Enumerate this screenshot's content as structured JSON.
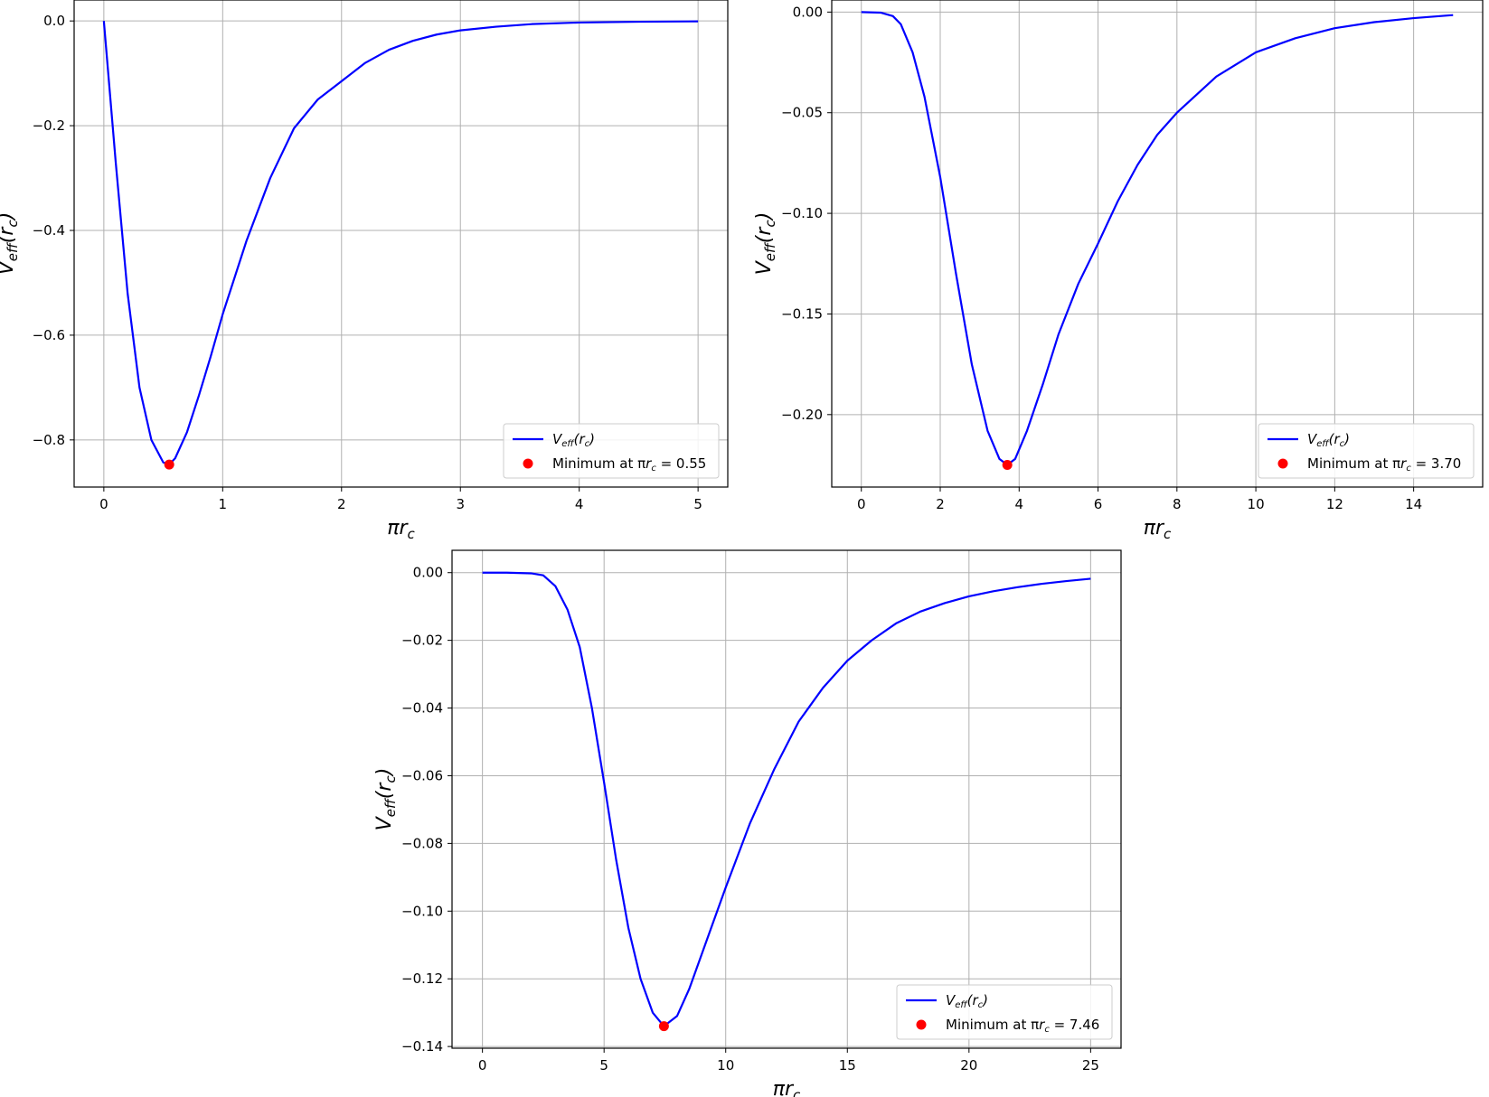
{
  "chart_data": [
    {
      "type": "line",
      "xlim": [
        -0.25,
        5.25
      ],
      "ylim": [
        -0.89,
        0.04
      ],
      "xticks": [
        0,
        1,
        2,
        3,
        4,
        5
      ],
      "xtick_labels": [
        "0",
        "1",
        "2",
        "3",
        "4",
        "5"
      ],
      "yticks": [
        0.0,
        -0.2,
        -0.4,
        -0.6,
        -0.8
      ],
      "ytick_labels": [
        "0.0",
        "−0.2",
        "−0.4",
        "−0.6",
        "−0.8"
      ],
      "grid": true,
      "legend_position": "lower-right",
      "series": [
        {
          "name": "V_eff(r_c)",
          "color": "#0000ff",
          "x": [
            0,
            0.1,
            0.2,
            0.3,
            0.4,
            0.5,
            0.55,
            0.6,
            0.7,
            0.8,
            0.9,
            1.0,
            1.2,
            1.4,
            1.6,
            1.8,
            2.0,
            2.2,
            2.4,
            2.6,
            2.8,
            3.0,
            3.3,
            3.6,
            4.0,
            4.5,
            5.0
          ],
          "y": [
            0,
            -0.27,
            -0.52,
            -0.7,
            -0.8,
            -0.843,
            -0.847,
            -0.835,
            -0.785,
            -0.715,
            -0.64,
            -0.56,
            -0.42,
            -0.3,
            -0.205,
            -0.15,
            -0.115,
            -0.08,
            -0.055,
            -0.038,
            -0.026,
            -0.018,
            -0.011,
            -0.006,
            -0.003,
            -0.0015,
            -0.0008
          ]
        }
      ],
      "minimum": {
        "x": 0.55,
        "y": -0.847,
        "color": "#ff0000"
      },
      "xlabel": "πr",
      "xlabel_sub": "c",
      "ylabel": "V",
      "ylabel_sub": "eff",
      "ylabel_arg": "(r",
      "ylabel_arg_sub": "c",
      "ylabel_close": ")",
      "legend": {
        "line_main": "V",
        "line_sub": "eff",
        "line_arg": "(r",
        "line_arg_sub": "c",
        "line_close": ")",
        "min_prefix": "Minimum at π",
        "min_r": "r",
        "min_r_sub": "c",
        "min_value": " = 0.55"
      }
    },
    {
      "type": "line",
      "xlim": [
        -0.75,
        15.75
      ],
      "ylim": [
        -0.236,
        0.006
      ],
      "xticks": [
        0,
        2,
        4,
        6,
        8,
        10,
        12,
        14
      ],
      "xtick_labels": [
        "0",
        "2",
        "4",
        "6",
        "8",
        "10",
        "12",
        "14"
      ],
      "yticks": [
        0.0,
        -0.05,
        -0.1,
        -0.15,
        -0.2
      ],
      "ytick_labels": [
        "0.00",
        "−0.05",
        "−0.10",
        "−0.15",
        "−0.20"
      ],
      "grid": true,
      "legend_position": "lower-right",
      "series": [
        {
          "name": "V_eff(r_c)",
          "color": "#0000ff",
          "x": [
            0,
            0.5,
            0.8,
            1.0,
            1.3,
            1.6,
            2.0,
            2.4,
            2.8,
            3.2,
            3.5,
            3.7,
            3.9,
            4.2,
            4.6,
            5.0,
            5.5,
            6.0,
            6.5,
            7.0,
            7.5,
            8.0,
            9.0,
            10.0,
            11.0,
            12.0,
            13.0,
            14.0,
            15.0
          ],
          "y": [
            0,
            -0.0003,
            -0.002,
            -0.006,
            -0.02,
            -0.042,
            -0.082,
            -0.13,
            -0.175,
            -0.208,
            -0.222,
            -0.225,
            -0.222,
            -0.208,
            -0.185,
            -0.16,
            -0.135,
            -0.115,
            -0.094,
            -0.076,
            -0.061,
            -0.05,
            -0.032,
            -0.02,
            -0.013,
            -0.008,
            -0.005,
            -0.003,
            -0.0015
          ]
        }
      ],
      "minimum": {
        "x": 3.7,
        "y": -0.225,
        "color": "#ff0000"
      },
      "xlabel": "πr",
      "xlabel_sub": "c",
      "ylabel": "V",
      "ylabel_sub": "eff",
      "ylabel_arg": "(r",
      "ylabel_arg_sub": "c",
      "ylabel_close": ")",
      "legend": {
        "line_main": "V",
        "line_sub": "eff",
        "line_arg": "(r",
        "line_arg_sub": "c",
        "line_close": ")",
        "min_prefix": "Minimum at π",
        "min_r": "r",
        "min_r_sub": "c",
        "min_value": " = 3.70"
      }
    },
    {
      "type": "line",
      "xlim": [
        -1.25,
        26.25
      ],
      "ylim": [
        -0.1405,
        0.0066
      ],
      "xticks": [
        0,
        5,
        10,
        15,
        20,
        25
      ],
      "xtick_labels": [
        "0",
        "5",
        "10",
        "15",
        "20",
        "25"
      ],
      "yticks": [
        0.0,
        -0.02,
        -0.04,
        -0.06,
        -0.08,
        -0.1,
        -0.12,
        -0.14
      ],
      "ytick_labels": [
        "0.00",
        "−0.02",
        "−0.04",
        "−0.06",
        "−0.08",
        "−0.10",
        "−0.12",
        "−0.14"
      ],
      "grid": true,
      "legend_position": "lower-right",
      "series": [
        {
          "name": "V_eff(r_c)",
          "color": "#0000ff",
          "x": [
            0,
            1,
            2,
            2.5,
            3,
            3.5,
            4,
            4.5,
            5,
            5.5,
            6,
            6.5,
            7,
            7.46,
            8,
            8.5,
            9,
            9.5,
            10,
            11,
            12,
            13,
            14,
            15,
            16,
            17,
            18,
            19,
            20,
            21,
            22,
            23,
            24,
            25
          ],
          "y": [
            0,
            0,
            -0.0002,
            -0.0008,
            -0.004,
            -0.011,
            -0.022,
            -0.04,
            -0.062,
            -0.085,
            -0.105,
            -0.12,
            -0.13,
            -0.134,
            -0.131,
            -0.123,
            -0.113,
            -0.103,
            -0.093,
            -0.074,
            -0.058,
            -0.044,
            -0.034,
            -0.026,
            -0.02,
            -0.015,
            -0.0115,
            -0.009,
            -0.007,
            -0.0055,
            -0.0043,
            -0.0033,
            -0.0025,
            -0.0018
          ]
        }
      ],
      "minimum": {
        "x": 7.46,
        "y": -0.134,
        "color": "#ff0000"
      },
      "xlabel": "πr",
      "xlabel_sub": "c",
      "ylabel": "V",
      "ylabel_sub": "eff",
      "ylabel_arg": "(r",
      "ylabel_arg_sub": "c",
      "ylabel_close": ")",
      "legend": {
        "line_main": "V",
        "line_sub": "eff",
        "line_arg": "(r",
        "line_arg_sub": "c",
        "line_close": ")",
        "min_prefix": "Minimum at π",
        "min_r": "r",
        "min_r_sub": "c",
        "min_value": " = 7.46"
      }
    }
  ]
}
